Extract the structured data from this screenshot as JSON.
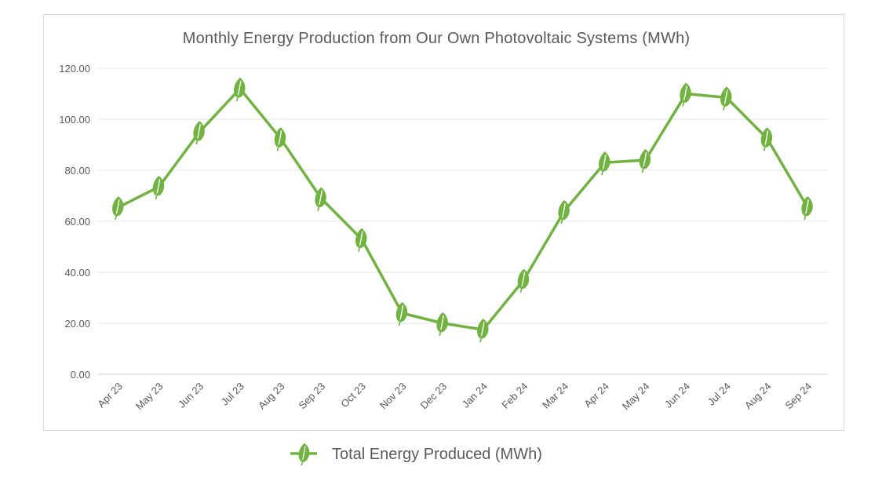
{
  "chart_data": {
    "type": "line",
    "title": "Monthly Energy Production from Our Own Photovoltaic Systems (MWh)",
    "categories": [
      "Apr 23",
      "May 23",
      "Jun 23",
      "Jul 23",
      "Aug 23",
      "Sep 23",
      "Oct 23",
      "Nov 23",
      "Dec 23",
      "Jan 24",
      "Feb 24",
      "Mar 24",
      "Apr 24",
      "May 24",
      "Jun 24",
      "Jul 24",
      "Aug 24",
      "Sep 24"
    ],
    "series": [
      {
        "name": "Total Energy Produced (MWh)",
        "values": [
          65.5,
          73.5,
          95,
          112,
          92.5,
          69,
          53,
          24,
          20,
          17.5,
          37,
          64,
          83,
          84,
          110,
          108.5,
          92.5,
          65.5
        ],
        "color": "#70b341",
        "marker": "leaf-icon"
      }
    ],
    "ylim": [
      0,
      120
    ],
    "yticks": [
      "0.00",
      "20.00",
      "40.00",
      "60.00",
      "80.00",
      "100.00",
      "120.00"
    ],
    "xlabel": "",
    "ylabel": "",
    "grid": true,
    "legend": "bottom-center"
  }
}
